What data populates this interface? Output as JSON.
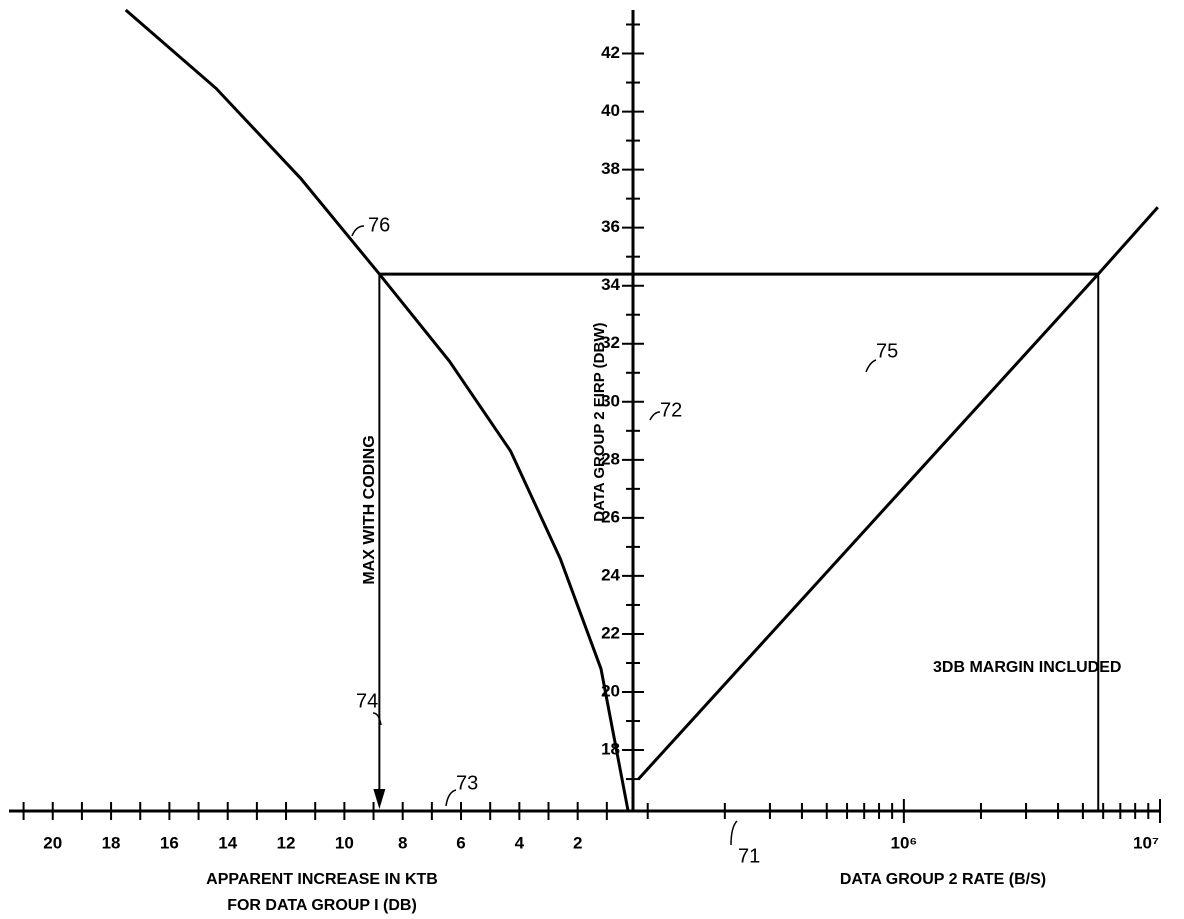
{
  "chart_data": {
    "type": "line",
    "color": "#000000",
    "y_label": "DATA GROUP 2 EIRP (DBW)",
    "ylim": [
      15.9,
      43.5
    ],
    "yticks": [
      18,
      20,
      22,
      24,
      26,
      28,
      30,
      32,
      34,
      36,
      38,
      40,
      42
    ],
    "yminor": [
      17,
      19,
      21,
      23,
      25,
      27,
      29,
      31,
      33,
      35,
      37,
      39,
      41,
      43
    ],
    "left_axis": {
      "label": [
        "APPARENT INCREASE IN KTB",
        "FOR DATA GROUP I (DB)"
      ],
      "xlim": [
        21.5,
        0
      ],
      "xticks": [
        20,
        18,
        16,
        14,
        12,
        10,
        8,
        6,
        4,
        2
      ],
      "xminor": [
        21,
        19,
        17,
        15,
        13,
        11,
        9,
        7,
        5,
        3,
        1
      ]
    },
    "right_axis": {
      "label": "DATA GROUP 2 RATE (B/S)",
      "log": true,
      "xlim": [
        90000,
        10000000
      ],
      "xticks": [
        {
          "value": 1000000,
          "label": "10⁶"
        },
        {
          "value": 10000000,
          "label": "10⁷"
        }
      ],
      "xminor": [
        100000,
        200000,
        300000,
        400000,
        500000,
        600000,
        700000,
        800000,
        900000,
        2000000,
        3000000,
        4000000,
        5000000,
        6000000,
        7000000,
        8000000,
        9000000
      ]
    },
    "series": [
      {
        "axis": "left",
        "x": [
          17.5,
          14.4,
          11.5,
          8.8,
          6.4,
          4.3,
          2.6,
          1.2,
          0.27
        ],
        "values": [
          43.5,
          40.8,
          37.7,
          34.4,
          31.4,
          28.3,
          24.6,
          20.8,
          15.9
        ]
      },
      {
        "axis": "right",
        "x": [
          92000,
          5740000,
          9800000
        ],
        "values": [
          17.0,
          34.4,
          36.7
        ]
      }
    ],
    "markers": {
      "y": 34.4,
      "x_left": 8.8,
      "x_right": 5740000
    },
    "annotations": [
      "76",
      "75",
      "72",
      "74",
      "73",
      "71",
      "MAX WITH CODING",
      "3DB MARGIN INCLUDED"
    ]
  }
}
